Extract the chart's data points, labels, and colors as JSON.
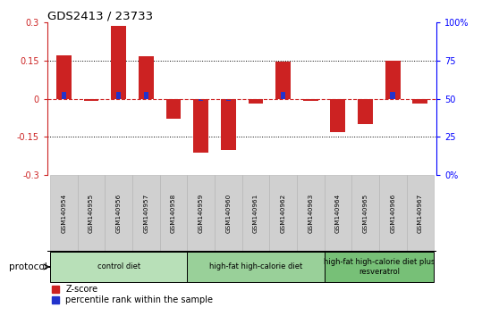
{
  "title": "GDS2413 / 23733",
  "samples": [
    "GSM140954",
    "GSM140955",
    "GSM140956",
    "GSM140957",
    "GSM140958",
    "GSM140959",
    "GSM140960",
    "GSM140961",
    "GSM140962",
    "GSM140963",
    "GSM140964",
    "GSM140965",
    "GSM140966",
    "GSM140967"
  ],
  "zscore": [
    0.17,
    -0.01,
    0.285,
    0.165,
    -0.08,
    -0.21,
    -0.2,
    -0.02,
    0.145,
    -0.01,
    -0.13,
    -0.1,
    0.15,
    -0.02
  ],
  "pct_rank_offset": [
    0.025,
    -0.003,
    0.028,
    0.025,
    -0.003,
    -0.007,
    -0.007,
    -0.003,
    0.027,
    -0.003,
    -0.003,
    -0.003,
    0.027,
    -0.003
  ],
  "ylim": [
    -0.3,
    0.3
  ],
  "yticks_left": [
    -0.3,
    -0.15,
    0,
    0.15,
    0.3
  ],
  "ytick_labels_left": [
    "-0.3",
    "-0.15",
    "0",
    "0.15",
    "0.3"
  ],
  "yticks_right_vals": [
    -0.3,
    -0.15,
    0,
    0.15,
    0.3
  ],
  "ytick_labels_right": [
    "0%",
    "25",
    "50",
    "75",
    "100%"
  ],
  "dotted_lines": [
    0.15,
    -0.15
  ],
  "bar_color_red": "#cc2222",
  "bar_color_blue": "#2233cc",
  "bg_color": "#ffffff",
  "bar_width": 0.55,
  "blue_bar_width": 0.18,
  "protocol_groups": [
    {
      "label": "control diet",
      "start": 0,
      "end": 4,
      "color": "#b8e0b8"
    },
    {
      "label": "high-fat high-calorie diet",
      "start": 5,
      "end": 9,
      "color": "#99d099"
    },
    {
      "label": "high-fat high-calorie diet plus\nresveratrol",
      "start": 10,
      "end": 13,
      "color": "#77c077"
    }
  ],
  "protocol_label": "protocol",
  "legend_zscore": "Z-score",
  "legend_pct": "percentile rank within the sample",
  "sample_cell_color": "#d0d0d0",
  "sample_cell_edge": "#b0b0b0"
}
